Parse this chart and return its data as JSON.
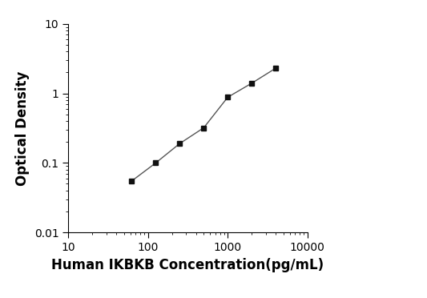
{
  "x": [
    62.5,
    125,
    250,
    500,
    1000,
    2000,
    4000
  ],
  "y": [
    0.055,
    0.1,
    0.19,
    0.32,
    0.88,
    1.4,
    2.3
  ],
  "xlabel": "Human IKBKB Concentration(pg/mL)",
  "ylabel": "Optical Density",
  "xlim": [
    10,
    10000
  ],
  "ylim": [
    0.01,
    10
  ],
  "line_color": "#555555",
  "marker_color": "#111111",
  "marker": "s",
  "marker_size": 5,
  "line_width": 1.0,
  "xlabel_fontsize": 12,
  "ylabel_fontsize": 12,
  "tick_fontsize": 10,
  "background_color": "#ffffff",
  "xticks": [
    10,
    100,
    1000,
    10000
  ],
  "yticks": [
    0.01,
    0.1,
    1,
    10
  ]
}
